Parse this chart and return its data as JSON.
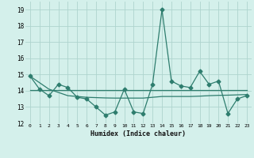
{
  "xlabel": "Humidex (Indice chaleur)",
  "x": [
    0,
    1,
    2,
    3,
    4,
    5,
    6,
    7,
    8,
    9,
    10,
    11,
    12,
    13,
    14,
    15,
    16,
    17,
    18,
    19,
    20,
    21,
    22,
    23
  ],
  "line1": [
    14.9,
    14.1,
    13.7,
    14.4,
    14.2,
    13.6,
    13.5,
    13.0,
    12.5,
    12.7,
    14.1,
    12.7,
    12.6,
    14.4,
    19.0,
    14.6,
    14.3,
    14.2,
    15.2,
    14.4,
    14.6,
    12.6,
    13.5,
    13.7
  ],
  "line2": [
    14.05,
    14.05,
    14.05,
    14.05,
    14.05,
    14.05,
    14.05,
    14.05,
    14.05,
    14.05,
    14.05,
    14.05,
    14.05,
    14.05,
    14.05,
    14.05,
    14.05,
    14.05,
    14.05,
    14.05,
    14.05,
    14.05,
    14.05,
    14.05
  ],
  "line3": [
    14.9,
    14.5,
    14.1,
    13.9,
    13.7,
    13.65,
    13.6,
    13.58,
    13.56,
    13.55,
    13.55,
    13.55,
    13.55,
    13.6,
    13.65,
    13.65,
    13.65,
    13.65,
    13.67,
    13.7,
    13.72,
    13.73,
    13.75,
    13.77
  ],
  "line_color": "#2e7d6e",
  "bg_color": "#d4f0eb",
  "grid_color": "#aed4ce",
  "ylim": [
    12,
    19.5
  ],
  "yticks": [
    12,
    13,
    14,
    15,
    16,
    17,
    18,
    19
  ],
  "xlim": [
    -0.5,
    23.5
  ]
}
